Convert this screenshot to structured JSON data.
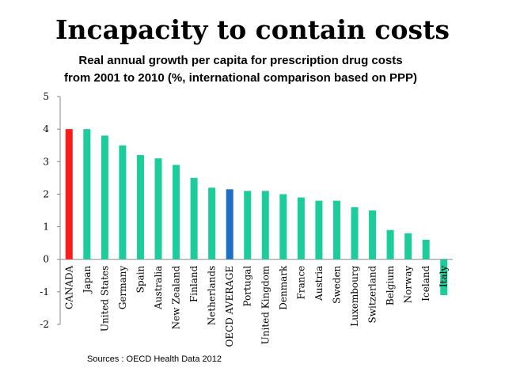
{
  "title": "Incapacity to contain costs",
  "subtitle_lines": [
    "Real annual growth per capita for prescription drug costs",
    "from 2001 to 2010 (%, international comparison based on PPP)"
  ],
  "source": "Sources : OECD Health Data 2012",
  "colors": {
    "default": "#1ccc9a",
    "highlight_canada": "#ff1a1a",
    "highlight_oecd": "#1f6fc4"
  },
  "chart_data": {
    "type": "bar",
    "title": "",
    "xlabel": "",
    "ylabel": "",
    "ylim": [
      -2,
      5
    ],
    "yticks": [
      5,
      4,
      3,
      2,
      1,
      0,
      -1,
      -2
    ],
    "categories": [
      "CANADA",
      "Japan",
      "United States",
      "Germany",
      "Spain",
      "Australia",
      "New Zealand",
      "Finland",
      "Netherlands",
      "OECD AVERAGE",
      "Portugal",
      "United Kingdom",
      "Denmark",
      "France",
      "Austria",
      "Sweden",
      "Luxembourg",
      "Switzerland",
      "Belgium",
      "Norway",
      "Iceland",
      "Italy"
    ],
    "values": [
      4.0,
      4.0,
      3.8,
      3.5,
      3.2,
      3.1,
      2.9,
      2.5,
      2.2,
      2.15,
      2.1,
      2.1,
      2.0,
      1.9,
      1.8,
      1.8,
      1.6,
      1.5,
      0.9,
      0.8,
      0.6,
      -1.1
    ],
    "bar_colors": [
      "#ff1a1a",
      "#1ccc9a",
      "#1ccc9a",
      "#1ccc9a",
      "#1ccc9a",
      "#1ccc9a",
      "#1ccc9a",
      "#1ccc9a",
      "#1ccc9a",
      "#1f6fc4",
      "#1ccc9a",
      "#1ccc9a",
      "#1ccc9a",
      "#1ccc9a",
      "#1ccc9a",
      "#1ccc9a",
      "#1ccc9a",
      "#1ccc9a",
      "#1ccc9a",
      "#1ccc9a",
      "#1ccc9a",
      "#1ccc9a"
    ],
    "grid": false,
    "legend": "none"
  }
}
